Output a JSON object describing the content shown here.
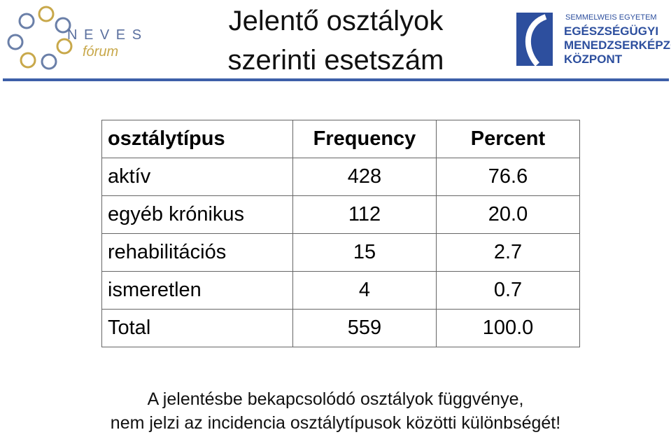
{
  "header": {
    "title": [
      "Jelentő osztályok",
      "szerinti esetszám"
    ],
    "left_logo": {
      "brand": "N E V E S",
      "sub": "fórum"
    },
    "right_logo": {
      "lines": [
        "SEMMELWEIS EGYETEM",
        "EGÉSZSÉGÜGYI",
        "MENEDZSERKÉPZŐ",
        "KÖZPONT"
      ]
    }
  },
  "table": {
    "columns": [
      "osztálytípus",
      "Frequency",
      "Percent"
    ],
    "rows": [
      [
        "aktív",
        "428",
        "76.6"
      ],
      [
        "egyéb krónikus",
        "112",
        "20.0"
      ],
      [
        "rehabilitációs",
        "15",
        "2.7"
      ],
      [
        "ismeretlen",
        "4",
        "0.7"
      ],
      [
        "Total",
        "559",
        "100.0"
      ]
    ]
  },
  "footer": {
    "lines": [
      "A jelentésbe bekapcsolódó osztályok függvénye,",
      "nem jelzi az incidencia osztálytípusok közötti különbségét!"
    ]
  }
}
